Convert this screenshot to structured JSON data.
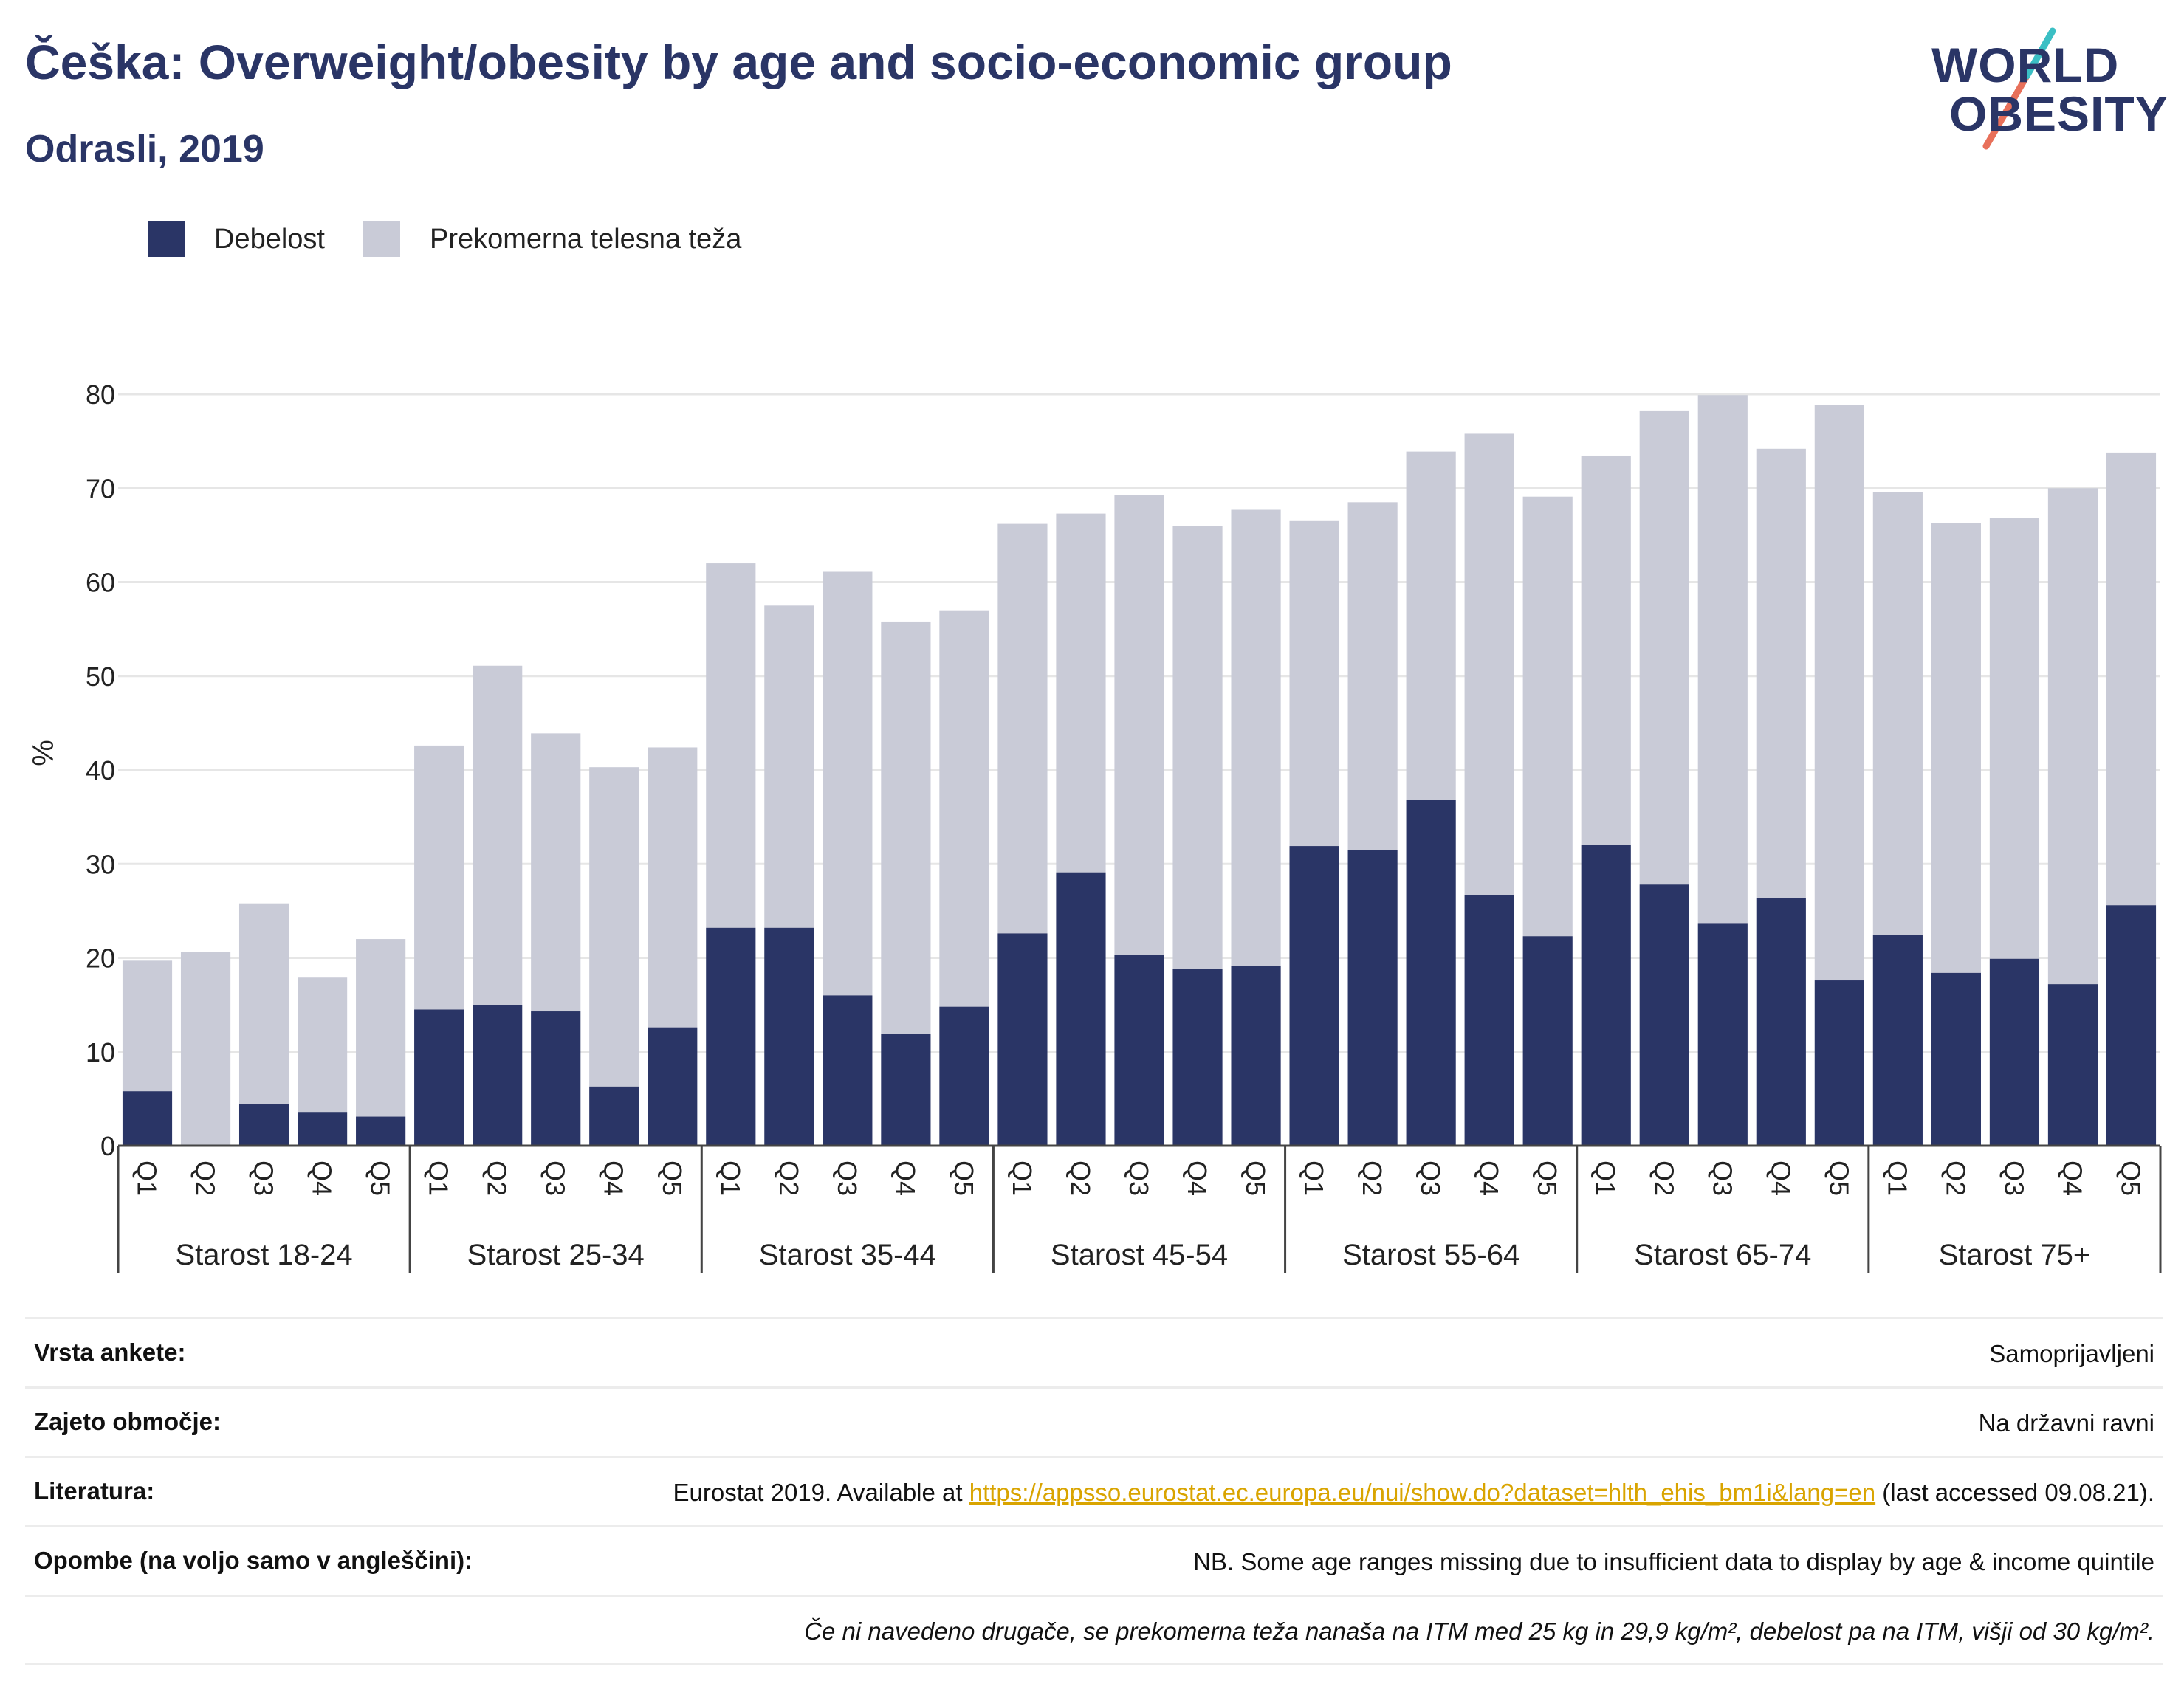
{
  "header": {
    "title": "Češka: Overweight/obesity by age and socio-economic group",
    "subtitle": "Odrasli, 2019"
  },
  "logo": {
    "line1": "WORLD",
    "line2": "OBESITY",
    "colors": {
      "text": "#2a3566",
      "slash_teal": "#3bbfc4",
      "slash_coral": "#e8705a"
    }
  },
  "chart_data": {
    "type": "bar",
    "stacked": true,
    "ylabel": "%",
    "ylim": [
      0,
      80
    ],
    "yticks": [
      0,
      10,
      20,
      30,
      40,
      50,
      60,
      70,
      80
    ],
    "grid": true,
    "legend_position": "top-left",
    "groups": [
      "Starost 18-24",
      "Starost 25-34",
      "Starost 35-44",
      "Starost 45-54",
      "Starost 55-64",
      "Starost 65-74",
      "Starost 75+"
    ],
    "subcategories": [
      "Q1",
      "Q2",
      "Q3",
      "Q4",
      "Q5"
    ],
    "series": [
      {
        "name": "Debelost",
        "color": "#2a3566",
        "values": [
          5.8,
          0,
          4.4,
          3.6,
          3.1,
          14.5,
          15.0,
          14.3,
          6.3,
          12.6,
          23.2,
          23.2,
          16.0,
          11.9,
          14.8,
          22.6,
          29.1,
          20.3,
          18.8,
          19.1,
          31.9,
          31.5,
          36.8,
          26.7,
          22.3,
          32.0,
          27.8,
          23.7,
          26.4,
          17.6,
          22.4,
          18.4,
          19.9,
          17.2,
          25.6
        ]
      },
      {
        "name": "Prekomerna telesna teža",
        "color": "#c9cbd7",
        "values": [
          13.9,
          20.6,
          21.4,
          14.3,
          18.9,
          28.1,
          36.1,
          29.6,
          34.0,
          29.8,
          38.8,
          34.3,
          45.1,
          43.9,
          42.2,
          43.6,
          38.2,
          49.0,
          47.2,
          48.6,
          34.6,
          37.0,
          37.1,
          49.1,
          46.8,
          41.4,
          50.4,
          56.2,
          47.8,
          61.3,
          47.2,
          47.9,
          46.9,
          52.8,
          48.2
        ]
      }
    ]
  },
  "info_table": {
    "rows": [
      {
        "key": "Vrsta ankete:",
        "value": "Samoprijavljeni"
      },
      {
        "key": "Zajeto območje:",
        "value": "Na državni ravni"
      },
      {
        "key": "Literatura:",
        "value_prefix": "Eurostat 2019. Available at ",
        "link": "https://appsso.eurostat.ec.europa.eu/nui/show.do?dataset=hlth_ehis_bm1i&lang=en",
        "value_suffix": " (last accessed 09.08.21)."
      },
      {
        "key": "Opombe (na voljo samo v angleščini):",
        "value": "NB. Some age ranges missing due to insufficient data to display by age & income quintile"
      }
    ],
    "footnote": "Če ni navedeno drugače, se prekomerna teža nanaša na ITM med 25 kg in 29,9 kg/m², debelost pa na ITM, višji od 30 kg/m²."
  }
}
